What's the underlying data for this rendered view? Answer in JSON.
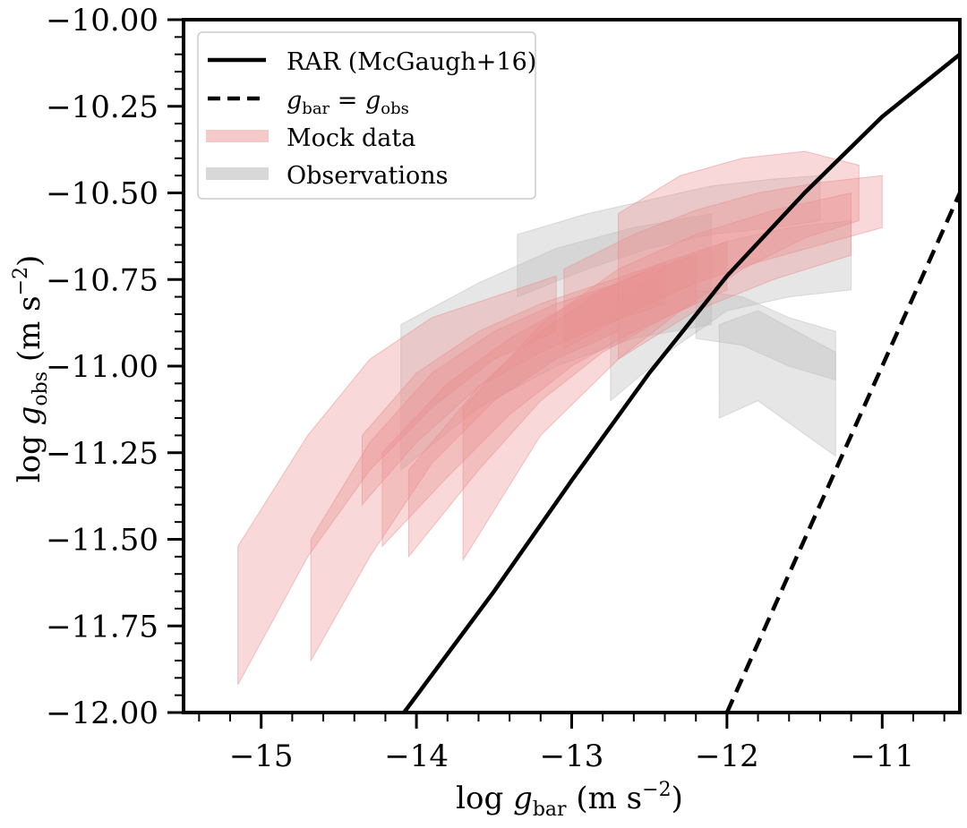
{
  "chart_data": {
    "type": "line",
    "xlabel": "log g_bar (m s^-2)",
    "ylabel": "log g_obs (m s^-2)",
    "xlim": [
      -15.5,
      -10.5
    ],
    "ylim": [
      -12.0,
      -10.0
    ],
    "x_major_ticks": [
      -15,
      -14,
      -13,
      -12,
      -11
    ],
    "x_tick_labels": [
      "−15",
      "−14",
      "−13",
      "−12",
      "−11"
    ],
    "y_major_ticks": [
      -10.0,
      -10.25,
      -10.5,
      -10.75,
      -11.0,
      -11.25,
      -11.5,
      -11.75,
      -12.0
    ],
    "y_tick_labels": [
      "−10.00",
      "−10.25",
      "−10.50",
      "−10.75",
      "−11.00",
      "−11.25",
      "−11.50",
      "−11.75",
      "−12.00"
    ],
    "legend": {
      "position": "upper-left",
      "entries": [
        {
          "label": "RAR (McGaugh+16)",
          "style": "solid"
        },
        {
          "label": "g_bar = g_obs",
          "style": "dashed"
        },
        {
          "label": "Mock data",
          "style": "band",
          "color": "#f2b3b3"
        },
        {
          "label": "Observations",
          "style": "band",
          "color": "#c8c8c8"
        }
      ]
    },
    "series": [
      {
        "name": "RAR (McGaugh+16)",
        "style": "solid",
        "color": "#000000",
        "x": [
          -14.08,
          -13.5,
          -13.0,
          -12.5,
          -12.0,
          -11.5,
          -11.0,
          -10.5
        ],
        "y": [
          -12.0,
          -11.65,
          -11.33,
          -11.02,
          -10.74,
          -10.5,
          -10.28,
          -10.1
        ]
      },
      {
        "name": "g_bar = g_obs",
        "style": "dashed",
        "color": "#000000",
        "x": [
          -12.0,
          -10.5
        ],
        "y": [
          -12.0,
          -10.5
        ]
      }
    ],
    "mock_bands": [
      {
        "x": [
          -15.15,
          -14.7,
          -14.3,
          -13.9,
          -13.5,
          -13.1
        ],
        "ylow": [
          -11.92,
          -11.55,
          -11.3,
          -11.12,
          -10.98,
          -10.9
        ],
        "yhigh": [
          -11.52,
          -11.2,
          -10.98,
          -10.86,
          -10.8,
          -10.74
        ]
      },
      {
        "x": [
          -14.68,
          -14.3,
          -13.9,
          -13.5,
          -13.1,
          -12.7
        ],
        "ylow": [
          -11.85,
          -11.55,
          -11.28,
          -11.1,
          -10.98,
          -10.9
        ],
        "yhigh": [
          -11.5,
          -11.22,
          -11.02,
          -10.9,
          -10.82,
          -10.76
        ]
      },
      {
        "x": [
          -14.35,
          -14.0,
          -13.6,
          -13.2,
          -12.8,
          -12.4
        ],
        "ylow": [
          -11.4,
          -11.22,
          -11.06,
          -10.96,
          -10.88,
          -10.82
        ],
        "yhigh": [
          -11.2,
          -11.02,
          -10.9,
          -10.82,
          -10.76,
          -10.7
        ]
      },
      {
        "x": [
          -14.22,
          -13.8,
          -13.4,
          -13.0,
          -12.6,
          -12.2
        ],
        "ylow": [
          -11.52,
          -11.32,
          -11.14,
          -11.0,
          -10.9,
          -10.82
        ],
        "yhigh": [
          -11.25,
          -11.05,
          -10.92,
          -10.82,
          -10.74,
          -10.68
        ]
      },
      {
        "x": [
          -14.05,
          -13.6,
          -13.2,
          -12.8,
          -12.4,
          -12.0
        ],
        "ylow": [
          -11.55,
          -11.3,
          -11.1,
          -10.96,
          -10.86,
          -10.78
        ],
        "yhigh": [
          -11.3,
          -11.06,
          -10.9,
          -10.78,
          -10.7,
          -10.64
        ]
      },
      {
        "x": [
          -13.7,
          -13.2,
          -12.7,
          -12.2,
          -11.7,
          -11.2
        ],
        "ylow": [
          -11.56,
          -11.2,
          -10.98,
          -10.84,
          -10.75,
          -10.68
        ],
        "yhigh": [
          -11.12,
          -10.88,
          -10.72,
          -10.62,
          -10.55,
          -10.5
        ]
      },
      {
        "x": [
          -13.05,
          -12.6,
          -12.2,
          -11.8,
          -11.4,
          -11.0
        ],
        "ylow": [
          -10.95,
          -10.84,
          -10.76,
          -10.7,
          -10.65,
          -10.6
        ],
        "yhigh": [
          -10.72,
          -10.62,
          -10.55,
          -10.5,
          -10.47,
          -10.45
        ]
      },
      {
        "x": [
          -12.7,
          -12.3,
          -11.9,
          -11.5,
          -11.15
        ],
        "ylow": [
          -10.98,
          -10.84,
          -10.72,
          -10.63,
          -10.58
        ],
        "yhigh": [
          -10.56,
          -10.45,
          -10.4,
          -10.38,
          -10.42
        ]
      }
    ],
    "observation_bands": [
      {
        "x": [
          -14.1,
          -13.6,
          -13.1,
          -12.6,
          -12.1
        ],
        "ylow": [
          -11.3,
          -11.12,
          -11.0,
          -10.92,
          -10.88
        ],
        "yhigh": [
          -10.88,
          -10.76,
          -10.66,
          -10.6,
          -10.56
        ]
      },
      {
        "x": [
          -13.35,
          -12.9,
          -12.5,
          -12.1,
          -11.7,
          -11.4
        ],
        "ylow": [
          -10.8,
          -10.72,
          -10.66,
          -10.62,
          -10.6,
          -10.58
        ],
        "yhigh": [
          -10.62,
          -10.56,
          -10.52,
          -10.48,
          -10.46,
          -10.45
        ]
      },
      {
        "x": [
          -12.75,
          -12.35,
          -12.0,
          -11.6,
          -11.2
        ],
        "ylow": [
          -11.1,
          -10.95,
          -10.84,
          -10.8,
          -10.78
        ],
        "yhigh": [
          -10.82,
          -10.7,
          -10.64,
          -10.6,
          -10.58
        ]
      },
      {
        "x": [
          -12.2,
          -11.9,
          -11.6,
          -11.3
        ],
        "ylow": [
          -10.92,
          -10.94,
          -11.0,
          -11.04
        ],
        "yhigh": [
          -10.78,
          -10.8,
          -10.86,
          -10.9
        ]
      },
      {
        "x": [
          -12.05,
          -11.8,
          -11.55,
          -11.3
        ],
        "ylow": [
          -11.15,
          -11.1,
          -11.18,
          -11.26
        ],
        "yhigh": [
          -10.88,
          -10.84,
          -10.9,
          -10.96
        ]
      }
    ]
  }
}
